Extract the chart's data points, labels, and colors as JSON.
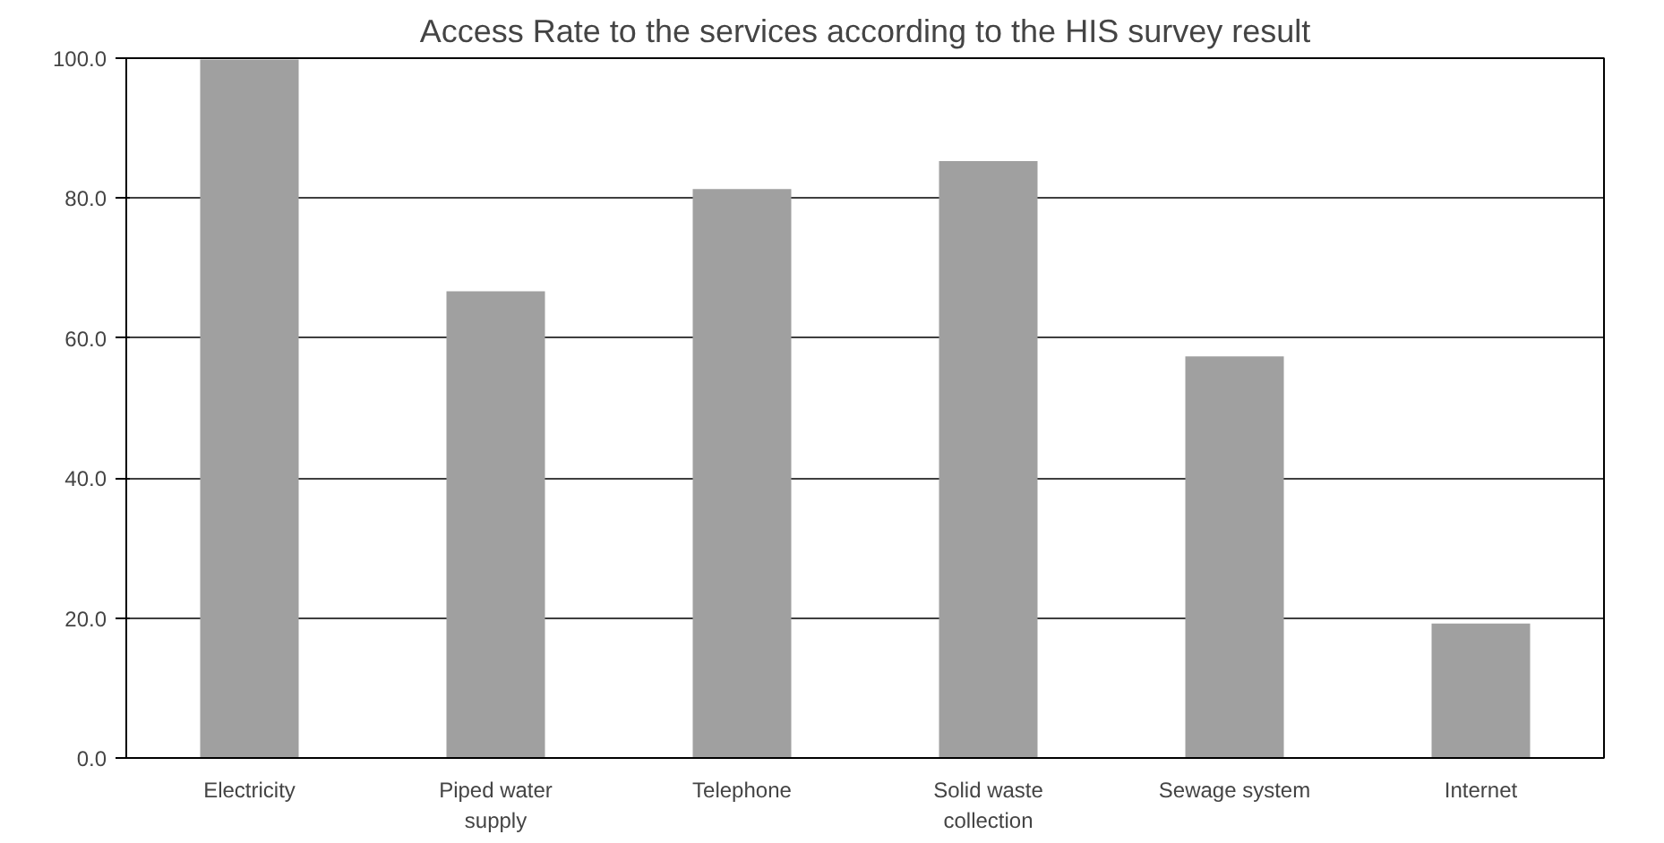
{
  "chart_data": {
    "type": "bar",
    "title": "Access Rate to the services according to the HIS survey result",
    "categories": [
      "Electricity",
      "Piped water\nsupply",
      "Telephone",
      "Solid waste\ncollection",
      "Sewage system",
      "Internet"
    ],
    "values": [
      99.8,
      66.7,
      81.3,
      85.3,
      57.4,
      19.2
    ],
    "color": "#a0a0a0",
    "ylim": [
      0,
      100
    ],
    "yticks": [
      {
        "value": 0,
        "label": "0.0"
      },
      {
        "value": 20,
        "label": "20.0"
      },
      {
        "value": 40,
        "label": "40.0"
      },
      {
        "value": 60,
        "label": "60.0"
      },
      {
        "value": 80,
        "label": "80.0"
      },
      {
        "value": 100,
        "label": "100.0"
      }
    ],
    "grid": "y"
  }
}
